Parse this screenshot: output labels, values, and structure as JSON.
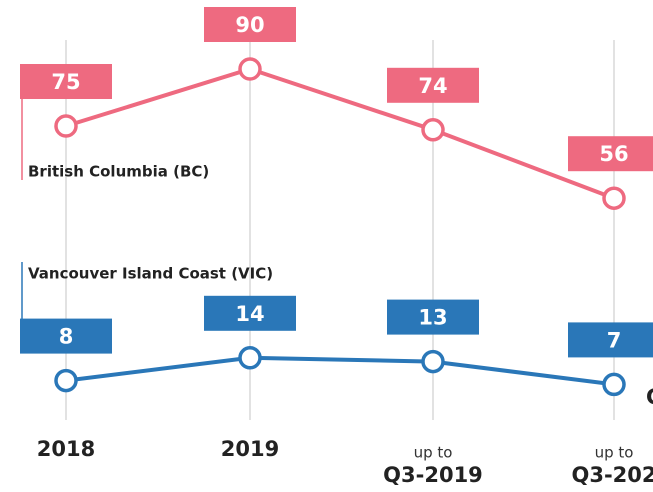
{
  "chart_data": {
    "type": "line",
    "categories": [
      "2018",
      "2019",
      "Q3-2019",
      "Q3-202"
    ],
    "category_prefixes": [
      null,
      null,
      "up to",
      "up to"
    ],
    "series": [
      {
        "name": "British Columbia (BC)",
        "color": "#ee6a80",
        "values": [
          75,
          90,
          74,
          56
        ]
      },
      {
        "name": "Vancouver Island Coast (VIC)",
        "color": "#2a77b8",
        "values": [
          8,
          14,
          13,
          7
        ]
      }
    ],
    "annotation": "C",
    "grid": true
  }
}
